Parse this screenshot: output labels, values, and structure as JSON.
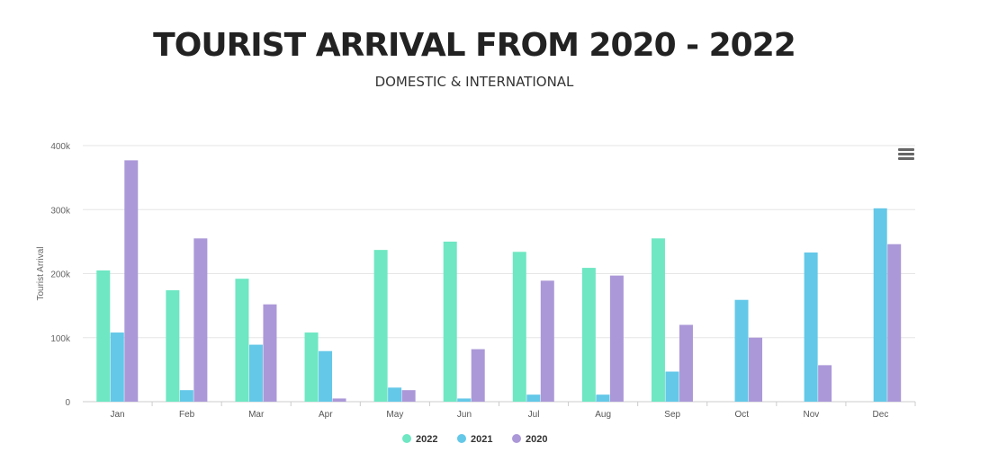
{
  "header": {
    "title": "TOURIST ARRIVAL FROM 2020 - 2022",
    "subtitle": "DOMESTIC & INTERNATIONAL"
  },
  "menu": {
    "icon": "hamburger-menu-icon"
  },
  "chart_data": {
    "type": "bar",
    "ylabel": "Tourist Arrival",
    "xlabel": "",
    "ylim": [
      0,
      400000
    ],
    "yticks": [
      0,
      100000,
      200000,
      300000,
      400000
    ],
    "ytick_labels": [
      "0",
      "100k",
      "200k",
      "300k",
      "400k"
    ],
    "grid": true,
    "legend": "bottom-center",
    "categories": [
      "Jan",
      "Feb",
      "Mar",
      "Apr",
      "May",
      "Jun",
      "Jul",
      "Aug",
      "Sep",
      "Oct",
      "Nov",
      "Dec"
    ],
    "series": [
      {
        "name": "2022",
        "color": "#6ee7c2",
        "values": [
          205000,
          174000,
          192000,
          108000,
          237000,
          250000,
          234000,
          209000,
          255000,
          0,
          0,
          0
        ]
      },
      {
        "name": "2021",
        "color": "#64c8e8",
        "values": [
          108000,
          18000,
          89000,
          79000,
          22000,
          5000,
          11000,
          11000,
          47000,
          159000,
          233000,
          302000
        ]
      },
      {
        "name": "2020",
        "color": "#ab98d8",
        "values": [
          377000,
          255000,
          152000,
          5000,
          18000,
          82000,
          189000,
          197000,
          120000,
          100000,
          57000,
          246000
        ]
      }
    ]
  }
}
